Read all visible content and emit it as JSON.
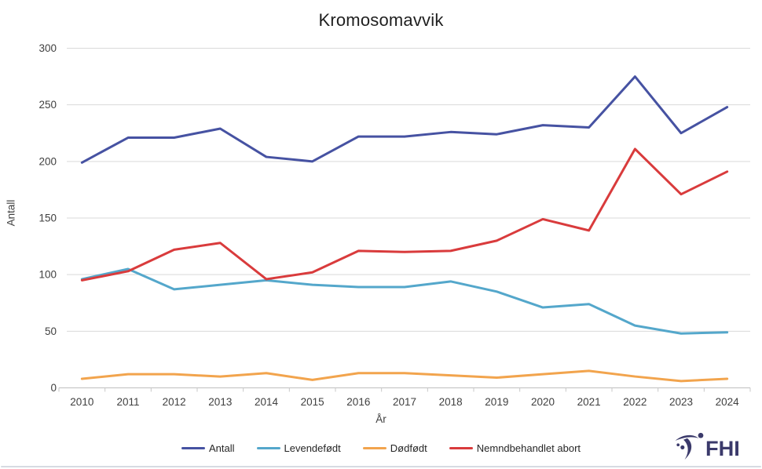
{
  "title": "Kromosomavvik",
  "axes": {
    "y_label": "Antall",
    "x_label": "År"
  },
  "logo": {
    "text": "FHI"
  },
  "colors": {
    "antall": "#4652A2",
    "levendefodt": "#54A7CB",
    "dodfodt": "#F2A44D",
    "nemndbehandlet_abort": "#D93B3C",
    "gridline": "#D9D9D9",
    "axis_line": "#C8C8C8",
    "tick_text": "#404040",
    "logo_navy": "#3B3A6B"
  },
  "chart_data": {
    "type": "line",
    "title": "Kromosomavvik",
    "xlabel": "År",
    "ylabel": "Antall",
    "x": [
      2010,
      2011,
      2012,
      2013,
      2014,
      2015,
      2016,
      2017,
      2018,
      2019,
      2020,
      2021,
      2022,
      2023,
      2024
    ],
    "ylim": [
      0,
      300
    ],
    "ytick_step": 50,
    "grid": true,
    "legend_position": "bottom",
    "series": [
      {
        "name": "Antall",
        "color": "#4652A2",
        "values": [
          199,
          221,
          221,
          229,
          204,
          200,
          222,
          222,
          226,
          224,
          232,
          230,
          275,
          225,
          248
        ]
      },
      {
        "name": "Levendefødt",
        "color": "#54A7CB",
        "values": [
          96,
          105,
          87,
          91,
          95,
          91,
          89,
          89,
          94,
          85,
          71,
          74,
          55,
          48,
          49
        ]
      },
      {
        "name": "Dødfødt",
        "color": "#F2A44D",
        "values": [
          8,
          12,
          12,
          10,
          13,
          7,
          13,
          13,
          11,
          9,
          12,
          15,
          10,
          6,
          8
        ]
      },
      {
        "name": "Nemndbehandlet abort",
        "color": "#D93B3C",
        "values": [
          95,
          103,
          122,
          128,
          96,
          102,
          121,
          120,
          121,
          130,
          149,
          139,
          211,
          171,
          191
        ]
      }
    ]
  }
}
